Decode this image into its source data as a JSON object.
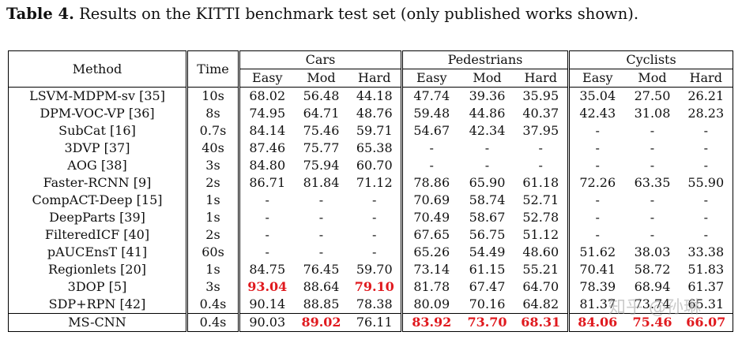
{
  "caption": {
    "label": "Table 4.",
    "text": "Results on the KITTI benchmark test set (only published works shown)."
  },
  "headers": {
    "method": "Method",
    "time": "Time",
    "groups": [
      "Cars",
      "Pedestrians",
      "Cyclists"
    ],
    "difficulties": [
      "Easy",
      "Mod",
      "Hard"
    ]
  },
  "rows": [
    {
      "method": "LSVM-MDPM-sv [35]",
      "time": "10s",
      "vals": [
        "68.02",
        "56.48",
        "44.18",
        "47.74",
        "39.36",
        "35.95",
        "35.04",
        "27.50",
        "26.21"
      ],
      "hl": []
    },
    {
      "method": "DPM-VOC-VP [36]",
      "time": "8s",
      "vals": [
        "74.95",
        "64.71",
        "48.76",
        "59.48",
        "44.86",
        "40.37",
        "42.43",
        "31.08",
        "28.23"
      ],
      "hl": []
    },
    {
      "method": "SubCat [16]",
      "time": "0.7s",
      "vals": [
        "84.14",
        "75.46",
        "59.71",
        "54.67",
        "42.34",
        "37.95",
        "-",
        "-",
        "-"
      ],
      "hl": []
    },
    {
      "method": "3DVP [37]",
      "time": "40s",
      "vals": [
        "87.46",
        "75.77",
        "65.38",
        "-",
        "-",
        "-",
        "-",
        "-",
        "-"
      ],
      "hl": []
    },
    {
      "method": "AOG [38]",
      "time": "3s",
      "vals": [
        "84.80",
        "75.94",
        "60.70",
        "-",
        "-",
        "-",
        "-",
        "-",
        "-"
      ],
      "hl": []
    },
    {
      "method": "Faster-RCNN [9]",
      "time": "2s",
      "vals": [
        "86.71",
        "81.84",
        "71.12",
        "78.86",
        "65.90",
        "61.18",
        "72.26",
        "63.35",
        "55.90"
      ],
      "hl": []
    },
    {
      "method": "CompACT-Deep [15]",
      "time": "1s",
      "vals": [
        "-",
        "-",
        "-",
        "70.69",
        "58.74",
        "52.71",
        "-",
        "-",
        "-"
      ],
      "hl": []
    },
    {
      "method": "DeepParts [39]",
      "time": "1s",
      "vals": [
        "-",
        "-",
        "-",
        "70.49",
        "58.67",
        "52.78",
        "-",
        "-",
        "-"
      ],
      "hl": []
    },
    {
      "method": "FilteredICF [40]",
      "time": "2s",
      "vals": [
        "-",
        "-",
        "-",
        "67.65",
        "56.75",
        "51.12",
        "-",
        "-",
        "-"
      ],
      "hl": []
    },
    {
      "method": "pAUCEnsT [41]",
      "time": "60s",
      "vals": [
        "-",
        "-",
        "-",
        "65.26",
        "54.49",
        "48.60",
        "51.62",
        "38.03",
        "33.38"
      ],
      "hl": []
    },
    {
      "method": "Regionlets [20]",
      "time": "1s",
      "vals": [
        "84.75",
        "76.45",
        "59.70",
        "73.14",
        "61.15",
        "55.21",
        "70.41",
        "58.72",
        "51.83"
      ],
      "hl": []
    },
    {
      "method": "3DOP [5]",
      "time": "3s",
      "vals": [
        "93.04",
        "88.64",
        "79.10",
        "81.78",
        "67.47",
        "64.70",
        "78.39",
        "68.94",
        "61.37"
      ],
      "hl": [
        0,
        2
      ]
    },
    {
      "method": "SDP+RPN [42]",
      "time": "0.4s",
      "vals": [
        "90.14",
        "88.85",
        "78.38",
        "80.09",
        "70.16",
        "64.82",
        "81.37",
        "73.74",
        "65.31"
      ],
      "hl": []
    },
    {
      "method": "MS-CNN",
      "time": "0.4s",
      "vals": [
        "90.03",
        "89.02",
        "76.11",
        "83.92",
        "73.70",
        "68.31",
        "84.06",
        "75.46",
        "66.07"
      ],
      "hl": [
        1,
        3,
        4,
        5,
        6,
        7,
        8
      ]
    }
  ],
  "watermark": "知乎 @孙琳",
  "highlight_color": "#e0191e"
}
